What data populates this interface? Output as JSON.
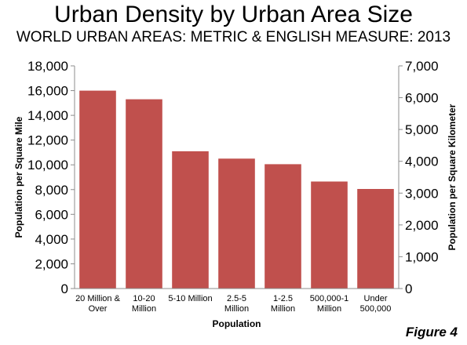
{
  "chart_data": {
    "type": "bar",
    "title": "Urban Density by Urban Area Size",
    "subtitle": "WORLD URBAN AREAS: METRIC & ENGLISH MEASURE: 2013",
    "xlabel": "Population",
    "ylabel": "Population per Square Mile",
    "y2label": "Population per Square Kilometer",
    "categories": [
      [
        "20 Million &",
        "Over"
      ],
      [
        "10-20",
        "Million"
      ],
      [
        "5-10 Million"
      ],
      [
        "2.5-5",
        "Million"
      ],
      [
        "1-2.5",
        "Million"
      ],
      [
        "500,000-1",
        "Million"
      ],
      [
        "Under",
        "500,000"
      ]
    ],
    "values": [
      16000,
      15300,
      11100,
      10500,
      10050,
      8650,
      8050
    ],
    "ylim": [
      0,
      18000
    ],
    "y2lim": [
      0,
      7000
    ],
    "yticks": [
      "0",
      "2,000",
      "4,000",
      "6,000",
      "8,000",
      "10,000",
      "12,000",
      "14,000",
      "16,000",
      "18,000"
    ],
    "y2ticks": [
      "0",
      "1,000",
      "2,000",
      "3,000",
      "4,000",
      "5,000",
      "6,000",
      "7,000"
    ],
    "bar_color": "#c0504d",
    "grid": false,
    "legend": "none"
  },
  "figure_label": "Figure 4"
}
